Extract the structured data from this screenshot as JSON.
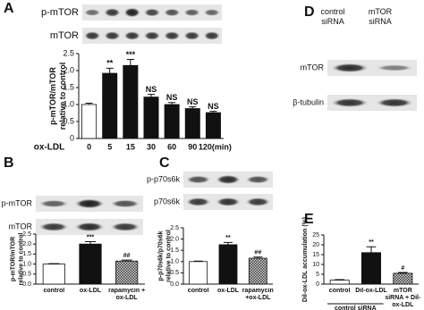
{
  "panel_letters": [
    "A",
    "B",
    "C",
    "D",
    "E"
  ],
  "blot_d": {
    "columns": [
      "control siRNA",
      "mTOR siRNA"
    ],
    "rows": [
      "mTOR",
      "β-tubulin"
    ]
  },
  "chart_data": [
    {
      "type": "bar",
      "blots": [
        "p-mTOR",
        "mTOR"
      ],
      "xlabel": "ox-LDL",
      "ylabel": [
        "p-mTOR/mTOR",
        "relative to control"
      ],
      "categories": [
        "0",
        "5",
        "15",
        "30",
        "60",
        "90",
        "120(min)"
      ],
      "values": [
        1.0,
        1.92,
        2.15,
        1.22,
        1.0,
        0.88,
        0.76
      ],
      "errors": [
        0.04,
        0.15,
        0.18,
        0.08,
        0.06,
        0.05,
        0.04
      ],
      "annotations": [
        null,
        "**",
        "***",
        "NS",
        "NS",
        "NS",
        "NS"
      ],
      "colors": [
        "#ffffff",
        "#111111",
        "#111111",
        "#111111",
        "#111111",
        "#111111",
        "#111111"
      ],
      "ylim": [
        0,
        2.5
      ],
      "yticks": [
        0,
        0.5,
        {
          "value": 1,
          "label": "1.0"
        },
        1.5,
        {
          "value": 2,
          "label": "2.0"
        },
        2.5
      ]
    },
    {
      "type": "bar",
      "blots": [
        "p-mTOR",
        "mTOR"
      ],
      "ylabel": [
        "p-mTOR/mTOR",
        "relative to control"
      ],
      "categories": [
        "control",
        "ox-LDL",
        "rapamycin + ox-LDL"
      ],
      "values": [
        1.0,
        2.0,
        1.15
      ],
      "errors": [
        0.02,
        0.12,
        0.05
      ],
      "annotations": [
        null,
        "***",
        "##"
      ],
      "colors": [
        "#ffffff",
        "#111111",
        "#8c8c8c"
      ],
      "ylim": [
        0,
        2.5
      ],
      "yticks": [
        {
          "value": 0,
          "label": "0.0"
        },
        0.5,
        {
          "value": 1,
          "label": "1.0"
        },
        1.5,
        {
          "value": 2,
          "label": "2.0"
        },
        2.5
      ]
    },
    {
      "type": "bar",
      "blots": [
        "p-p70s6k",
        "p70s6k"
      ],
      "ylabel": [
        "p-p70s6k/p70s6k",
        "relative to control"
      ],
      "categories": [
        "control",
        "ox-LDL",
        "rapamycin +ox-LDL"
      ],
      "values": [
        1.0,
        1.75,
        1.15
      ],
      "errors": [
        0.02,
        0.1,
        0.05
      ],
      "annotations": [
        null,
        "**",
        "##"
      ],
      "colors": [
        "#ffffff",
        "#111111",
        "#8c8c8c"
      ],
      "ylim": [
        0,
        2.5
      ],
      "yticks": [
        {
          "value": 0,
          "label": "0.0"
        },
        0.5,
        {
          "value": 1,
          "label": "1.0"
        },
        1.5,
        {
          "value": 2,
          "label": "2.0"
        },
        2.5
      ]
    },
    {
      "type": "bar",
      "group_label": "control siRNA",
      "ylabel": [
        "Dil-ox-LDL accumulation (%)"
      ],
      "categories": [
        "control",
        "Dil-ox-LDL",
        "mTOR siRNA + Dil-ox-LDL"
      ],
      "values": [
        2,
        16,
        5.5
      ],
      "errors": [
        0.3,
        3,
        0.4
      ],
      "annotations": [
        null,
        "**",
        "#"
      ],
      "colors": [
        "#ffffff",
        "#111111",
        "#9a9a9a"
      ],
      "ylim": [
        0,
        25
      ],
      "yticks": [
        0,
        5,
        10,
        15,
        20,
        25
      ]
    }
  ]
}
